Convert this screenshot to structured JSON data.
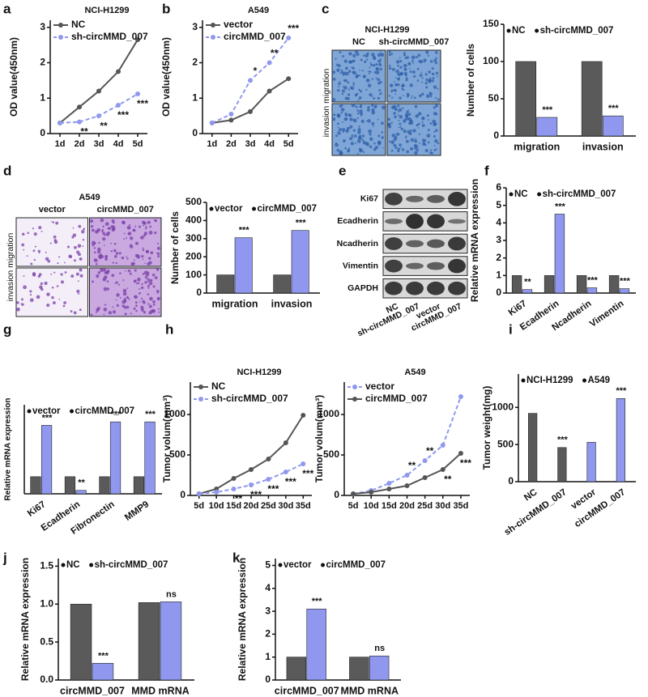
{
  "chart_data": [
    {
      "type": "line",
      "panel": "a",
      "title": "NCI-H1299",
      "y_label": "OD value(450nm)",
      "categories": [
        "1d",
        "2d",
        "3d",
        "4d",
        "5d"
      ],
      "ylim": [
        0,
        3.2
      ],
      "yticks": [
        0,
        1,
        2,
        3
      ],
      "series": [
        {
          "name": "NC",
          "color": "#555555",
          "dashed": false,
          "values": [
            0.3,
            0.75,
            1.2,
            1.75,
            2.65
          ],
          "sig": [
            null,
            null,
            null,
            null,
            null
          ]
        },
        {
          "name": "sh-circMMD_007",
          "color": "#8f98ee",
          "dashed": true,
          "values": [
            0.3,
            0.33,
            0.5,
            0.8,
            1.12
          ],
          "sig": [
            null,
            "**",
            "**",
            "***",
            "***"
          ]
        }
      ]
    },
    {
      "type": "line",
      "panel": "b",
      "title": "A549",
      "y_label": "OD value(450nm)",
      "categories": [
        "1d",
        "2d",
        "3d",
        "4d",
        "5d"
      ],
      "ylim": [
        0,
        3.2
      ],
      "yticks": [
        0,
        1,
        2,
        3
      ],
      "series": [
        {
          "name": "vector",
          "color": "#555555",
          "dashed": false,
          "values": [
            0.3,
            0.38,
            0.62,
            1.2,
            1.55
          ],
          "sig": [
            null,
            null,
            null,
            null,
            null
          ]
        },
        {
          "name": "circMMD_007",
          "color": "#8f98ee",
          "dashed": true,
          "values": [
            0.3,
            0.55,
            1.5,
            2.0,
            2.7
          ],
          "sig": [
            null,
            null,
            "*",
            "**",
            "***"
          ]
        }
      ]
    },
    {
      "type": "image",
      "panel": "c",
      "title": "NCI-H1299",
      "columns": [
        "NC",
        "sh-circMMD_007"
      ],
      "rows_label": "invasion migration",
      "color": "#2f5fa8"
    },
    {
      "type": "bar",
      "y_label": "Number of cells",
      "categories": [
        "migration",
        "invasion"
      ],
      "ylim": [
        0,
        150
      ],
      "yticks": [
        0,
        50,
        100,
        150
      ],
      "series": [
        {
          "name": "NC",
          "color": "#5a5a5a",
          "values": [
            100,
            100
          ],
          "sig": [
            null,
            null
          ]
        },
        {
          "name": "sh-circMMD_007",
          "color": "#8f98ee",
          "values": [
            25,
            27
          ],
          "sig": [
            "***",
            "***"
          ]
        }
      ]
    },
    {
      "type": "image",
      "panel": "d",
      "title": "A549",
      "columns": [
        "vector",
        "circMMD_007"
      ],
      "rows_label": "invasion migration",
      "color": "#7a3fa8"
    },
    {
      "type": "bar",
      "y_label": "Number of cells",
      "categories": [
        "migration",
        "invasion"
      ],
      "ylim": [
        0,
        500
      ],
      "yticks": [
        0,
        100,
        200,
        300,
        400,
        500
      ],
      "series": [
        {
          "name": "vector",
          "color": "#5a5a5a",
          "values": [
            100,
            100
          ],
          "sig": [
            null,
            null
          ]
        },
        {
          "name": "circMMD_007",
          "color": "#8f98ee",
          "values": [
            305,
            345
          ],
          "sig": [
            "***",
            "***"
          ]
        }
      ]
    },
    {
      "type": "blot",
      "panel": "e",
      "rows": [
        "Ki67",
        "Ecadherin",
        "Ncadherin",
        "Vimentin",
        "GAPDH"
      ],
      "lanes": [
        "NC",
        "sh-circMMD_007",
        "vector",
        "circMMD_007"
      ]
    },
    {
      "type": "bar",
      "panel": "f",
      "y_label": "Relative mRNA expression",
      "categories": [
        "Ki67",
        "Ecadherin",
        "Ncadherin",
        "Vimentin"
      ],
      "ylim": [
        0,
        6
      ],
      "yticks": [
        0,
        1,
        2,
        3,
        4,
        5,
        6
      ],
      "series": [
        {
          "name": "NC",
          "color": "#5a5a5a",
          "values": [
            1,
            1,
            1,
            1
          ],
          "sig": [
            null,
            null,
            null,
            null
          ]
        },
        {
          "name": "sh-circMMD_007",
          "color": "#8f98ee",
          "values": [
            0.2,
            4.5,
            0.3,
            0.25
          ],
          "sig": [
            "**",
            "***",
            "***",
            "***"
          ]
        }
      ]
    },
    {
      "type": "bar",
      "panel": "g",
      "y_label": "Relative mRNA expression",
      "categories": [
        "Ki67",
        "Ecadherin",
        "Fibronectin",
        "MMP9"
      ],
      "ylim": [
        0,
        5.2
      ],
      "series": [
        {
          "name": "vector",
          "color": "#5a5a5a",
          "values": [
            1,
            1,
            1,
            1
          ],
          "sig": [
            null,
            null,
            null,
            null
          ]
        },
        {
          "name": "circMMD_007",
          "color": "#8f98ee",
          "values": [
            4,
            0.2,
            4.2,
            4.2
          ],
          "sig": [
            "***",
            "**",
            "***",
            "***"
          ]
        }
      ]
    },
    {
      "type": "line",
      "panel": "h",
      "title": "NCI-H1299",
      "y_label": "Tumor volum(mm³)",
      "categories": [
        "5d",
        "10d",
        "15d",
        "20d",
        "25d",
        "30d",
        "35d"
      ],
      "ylim": [
        0,
        1400
      ],
      "yticks": [
        0,
        500,
        1000
      ],
      "series": [
        {
          "name": "NC",
          "color": "#555555",
          "dashed": false,
          "values": [
            20,
            80,
            210,
            320,
            450,
            650,
            990
          ],
          "sig": [
            null,
            null,
            null,
            null,
            null,
            null,
            null
          ]
        },
        {
          "name": "sh-circMMD_007",
          "color": "#8f98ee",
          "dashed": true,
          "values": [
            20,
            40,
            80,
            130,
            200,
            290,
            390
          ],
          "sig": [
            null,
            null,
            "**",
            "***",
            "***",
            "***",
            "***"
          ]
        }
      ]
    },
    {
      "type": "line",
      "title": "A549",
      "y_label": "Tumor volum(mm³)",
      "categories": [
        "5d",
        "10d",
        "15d",
        "20d",
        "25d",
        "30d",
        "35d"
      ],
      "ylim": [
        0,
        1400
      ],
      "yticks": [
        0,
        500,
        1000
      ],
      "series": [
        {
          "name": "vector",
          "color": "#8f98ee",
          "dashed": true,
          "values": [
            20,
            60,
            150,
            250,
            430,
            620,
            1220
          ],
          "sig": [
            null,
            null,
            null,
            "**",
            "**",
            null,
            null
          ]
        },
        {
          "name": "circMMD_007",
          "color": "#555555",
          "dashed": false,
          "values": [
            20,
            40,
            80,
            120,
            220,
            320,
            520
          ],
          "sig": [
            null,
            null,
            null,
            null,
            null,
            "**",
            "***"
          ]
        }
      ]
    },
    {
      "type": "bar",
      "panel": "i",
      "y_label": "Tumor weight(mg)",
      "categories": [
        "NC",
        "sh-circMMD_007",
        "vector",
        "circMMD_007"
      ],
      "ylim": [
        0,
        1450
      ],
      "yticks": [
        0,
        500,
        1000
      ],
      "series": [
        {
          "name": "NCI-H1299",
          "color": "#5a5a5a",
          "values": [
            920,
            460,
            null,
            null
          ],
          "sig": [
            null,
            "***",
            null,
            null
          ]
        },
        {
          "name": "A549",
          "color": "#8f98ee",
          "values": [
            null,
            null,
            530,
            1120
          ],
          "sig": [
            null,
            null,
            null,
            "***"
          ]
        }
      ]
    },
    {
      "type": "bar",
      "panel": "j",
      "y_label": "Relative mRNA expression",
      "categories": [
        "circMMD_007",
        "MMD mRNA"
      ],
      "ylim": [
        0,
        1.6
      ],
      "yticks": [
        {
          "value": 0,
          "label": "0.0"
        },
        {
          "value": 0.5,
          "label": "0.5"
        },
        {
          "value": 1,
          "label": "1.0"
        },
        {
          "value": 1.5,
          "label": "1.5"
        }
      ],
      "series": [
        {
          "name": "NC",
          "color": "#5a5a5a",
          "values": [
            1,
            1.02
          ],
          "sig": [
            null,
            null
          ]
        },
        {
          "name": "sh-circMMD_007",
          "color": "#8f98ee",
          "values": [
            0.22,
            1.03
          ],
          "sig": [
            "***",
            "ns"
          ]
        }
      ]
    },
    {
      "type": "bar",
      "panel": "k",
      "y_label": "Relative mRNA expression",
      "categories": [
        "circMMD_007",
        "MMD mRNA"
      ],
      "ylim": [
        0,
        5.3
      ],
      "yticks": [
        0,
        1,
        2,
        3,
        4,
        5
      ],
      "series": [
        {
          "name": "vector",
          "color": "#5a5a5a",
          "values": [
            1,
            1
          ],
          "sig": [
            null,
            null
          ]
        },
        {
          "name": "circMMD_007",
          "color": "#8f98ee",
          "values": [
            3.1,
            1.05
          ],
          "sig": [
            "***",
            "ns"
          ]
        }
      ]
    }
  ]
}
